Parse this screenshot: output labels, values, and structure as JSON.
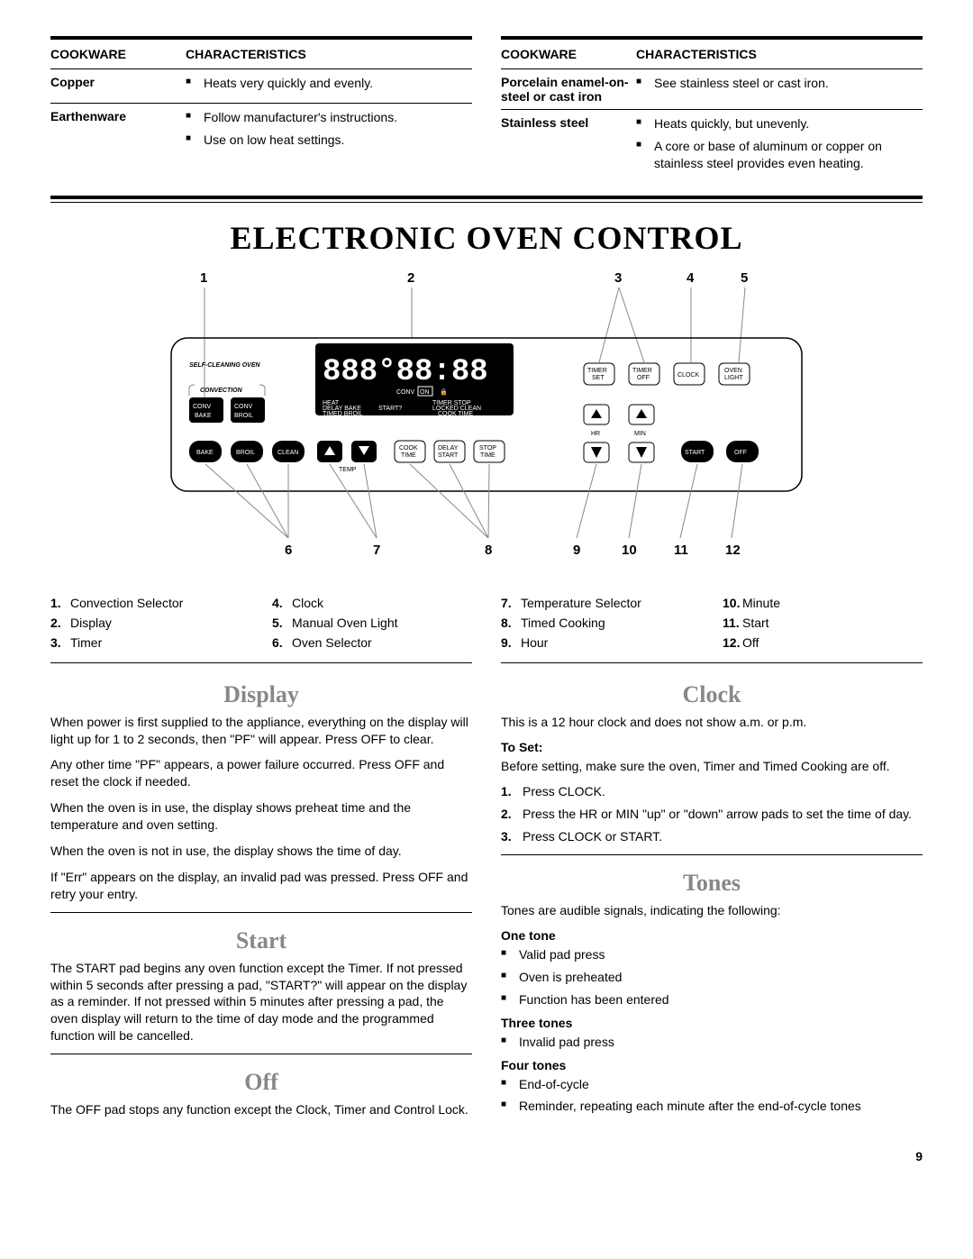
{
  "cookware_left": {
    "headers": {
      "cookware": "COOKWARE",
      "characteristics": "CHARACTERISTICS"
    },
    "rows": [
      {
        "name": "Copper",
        "chars": [
          "Heats very quickly and evenly."
        ]
      },
      {
        "name": "Earthenware",
        "chars": [
          "Follow manufacturer's instructions.",
          "Use on low heat settings."
        ]
      }
    ]
  },
  "cookware_right": {
    "headers": {
      "cookware": "COOKWARE",
      "characteristics": "CHARACTERISTICS"
    },
    "rows": [
      {
        "name": "Porcelain enamel-on-steel or cast iron",
        "chars": [
          "See stainless steel or cast iron."
        ]
      },
      {
        "name": "Stainless steel",
        "chars": [
          "Heats quickly, but unevenly.",
          "A core or base of aluminum or copper on stainless steel provides even heating."
        ]
      }
    ]
  },
  "section_title": "ELECTRONIC OVEN CONTROL",
  "callouts_top": [
    "1",
    "2",
    "3",
    "4",
    "5"
  ],
  "callouts_bot": [
    "6",
    "7",
    "8",
    "9",
    "10",
    "11",
    "12"
  ],
  "panel": {
    "self_cleaning": "SELF-CLEANING OVEN",
    "convection": "CONVECTION",
    "display_digits": "888°88:88",
    "indicators": {
      "conv": "CONV",
      "on": "ON",
      "lock": "🔒",
      "heat": "HEAT",
      "delay": "DELAY",
      "timed": "TIMED",
      "bake": "BAKE",
      "broil": "BROIL",
      "start_q": "START?",
      "timer": "TIMER",
      "locked": "LOCKED",
      "cook": "COOK",
      "stop": "STOP",
      "clean": "CLEAN",
      "time": "TIME"
    },
    "buttons": {
      "conv_bake": "CONV BAKE",
      "conv_broil": "CONV BROIL",
      "bake": "BAKE",
      "broil": "BROIL",
      "clean": "CLEAN",
      "temp": "TEMP",
      "cook_time": "COOK TIME",
      "delay_start": "DELAY START",
      "stop_time": "STOP TIME",
      "timer_set": "TIMER SET",
      "timer_off": "TIMER OFF",
      "clock": "CLOCK",
      "oven_light": "OVEN LIGHT",
      "hr": "HR",
      "min": "MIN",
      "start": "START",
      "off": "OFF"
    }
  },
  "legend": [
    {
      "n": "1.",
      "t": "Convection Selector"
    },
    {
      "n": "2.",
      "t": "Display"
    },
    {
      "n": "3.",
      "t": "Timer"
    },
    {
      "n": "4.",
      "t": "Clock"
    },
    {
      "n": "5.",
      "t": "Manual Oven Light"
    },
    {
      "n": "6.",
      "t": "Oven Selector"
    },
    {
      "n": "7.",
      "t": "Temperature Selector"
    },
    {
      "n": "8.",
      "t": "Timed Cooking"
    },
    {
      "n": "9.",
      "t": "Hour"
    },
    {
      "n": "10.",
      "t": "Minute"
    },
    {
      "n": "11.",
      "t": "Start"
    },
    {
      "n": "12.",
      "t": "Off"
    }
  ],
  "display": {
    "heading": "Display",
    "paras": [
      "When power is first supplied to the appliance, everything on the display will light up for 1 to 2 seconds, then \"PF\" will appear. Press OFF to clear.",
      "Any other time \"PF\" appears, a power failure occurred. Press OFF and reset the clock if needed.",
      "When the oven is in use, the display shows preheat time and the temperature and oven setting.",
      "When the oven is not in use, the display shows the time of day.",
      "If \"Err\" appears on the display, an invalid pad was pressed. Press OFF and retry your entry."
    ]
  },
  "start": {
    "heading": "Start",
    "para": "The START pad begins any oven function except the Timer. If not pressed within 5 seconds after pressing a pad, \"START?\" will appear on the display as a reminder. If not pressed within 5 minutes after pressing a pad, the oven display will return to the time of day mode and the programmed function will be cancelled."
  },
  "off": {
    "heading": "Off",
    "para": "The OFF pad stops any function except the Clock, Timer and Control Lock."
  },
  "clock": {
    "heading": "Clock",
    "intro": "This is a 12 hour clock and does not show a.m. or p.m.",
    "toset": "To Set:",
    "before": "Before setting, make sure the oven, Timer and Timed Cooking are off.",
    "steps": [
      "Press CLOCK.",
      "Press the HR or MIN \"up\" or \"down\" arrow pads to set the time of day.",
      "Press CLOCK or START."
    ]
  },
  "tones": {
    "heading": "Tones",
    "intro": "Tones are audible signals, indicating the following:",
    "one_label": "One tone",
    "one": [
      "Valid pad press",
      "Oven is preheated",
      "Function has been entered"
    ],
    "three_label": "Three tones",
    "three": [
      "Invalid pad press"
    ],
    "four_label": "Four tones",
    "four": [
      "End-of-cycle",
      "Reminder, repeating each minute after the end-of-cycle tones"
    ]
  },
  "page_number": "9"
}
